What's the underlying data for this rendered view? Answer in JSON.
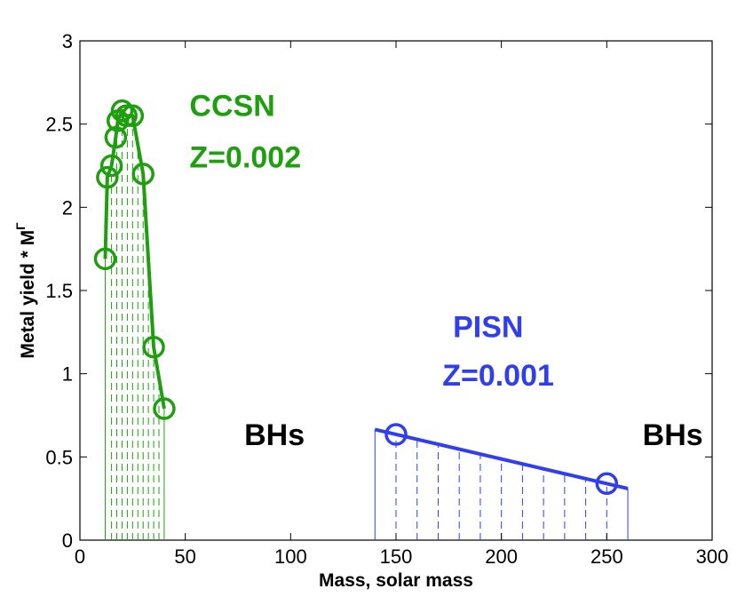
{
  "chart_data": {
    "type": "line",
    "title": "",
    "xlabel": "Mass, solar mass",
    "ylabel_prefix": "Metal yield * M",
    "ylabel_superscript": "Γ",
    "xlim": [
      0,
      300
    ],
    "ylim": [
      0,
      3
    ],
    "xticks": [
      0,
      50,
      100,
      150,
      200,
      250,
      300
    ],
    "yticks": [
      0,
      0.5,
      1,
      1.5,
      2,
      2.5,
      3
    ],
    "xtick_labels": [
      "0",
      "50",
      "100",
      "150",
      "200",
      "250",
      "300"
    ],
    "ytick_labels": [
      "0",
      "0.5",
      "1",
      "1.5",
      "2",
      "2.5",
      "3"
    ],
    "grid": false,
    "series": [
      {
        "name": "CCSN",
        "color": "#1f9e0f",
        "x": [
          12,
          13,
          15,
          17,
          18,
          20,
          22,
          25,
          30,
          35,
          40
        ],
        "y": [
          1.69,
          2.18,
          2.25,
          2.42,
          2.52,
          2.58,
          2.55,
          2.55,
          2.2,
          1.16,
          0.79
        ],
        "marker_x": [
          12,
          13,
          15,
          17,
          18,
          20,
          22,
          25,
          30,
          35,
          40
        ],
        "marker_y": [
          1.69,
          2.18,
          2.25,
          2.42,
          2.52,
          2.58,
          2.55,
          2.55,
          2.2,
          1.16,
          0.79
        ],
        "fill_range": [
          12,
          40
        ],
        "fill_lines_x": [
          15,
          17.5,
          20,
          22.5,
          25,
          27.5,
          30,
          32.5,
          35,
          37.5
        ]
      },
      {
        "name": "PISN",
        "color": "#2f3fef",
        "x": [
          140,
          260
        ],
        "y": [
          0.665,
          0.31
        ],
        "marker_x": [
          150,
          250
        ],
        "marker_y": [
          0.635,
          0.34
        ],
        "fill_range": [
          140,
          260
        ],
        "fill_lines_x": [
          150,
          160,
          170,
          180,
          190,
          200,
          210,
          220,
          230,
          240,
          250
        ]
      }
    ],
    "annotations": [
      {
        "text": "CCSN",
        "color": "#1f9e0f",
        "x": 52,
        "y": 2.55
      },
      {
        "text": "Z=0.002",
        "color": "#1f9e0f",
        "x": 52,
        "y": 2.24
      },
      {
        "text": "PISN",
        "color": "#2f3fef",
        "x": 177,
        "y": 1.22
      },
      {
        "text": "Z=0.001",
        "color": "#2f3fef",
        "x": 172,
        "y": 0.93
      },
      {
        "text": "BHs",
        "color": "#000000",
        "x": 78,
        "y": 0.57
      },
      {
        "text": "BHs",
        "color": "#000000",
        "x": 267,
        "y": 0.57
      }
    ]
  }
}
